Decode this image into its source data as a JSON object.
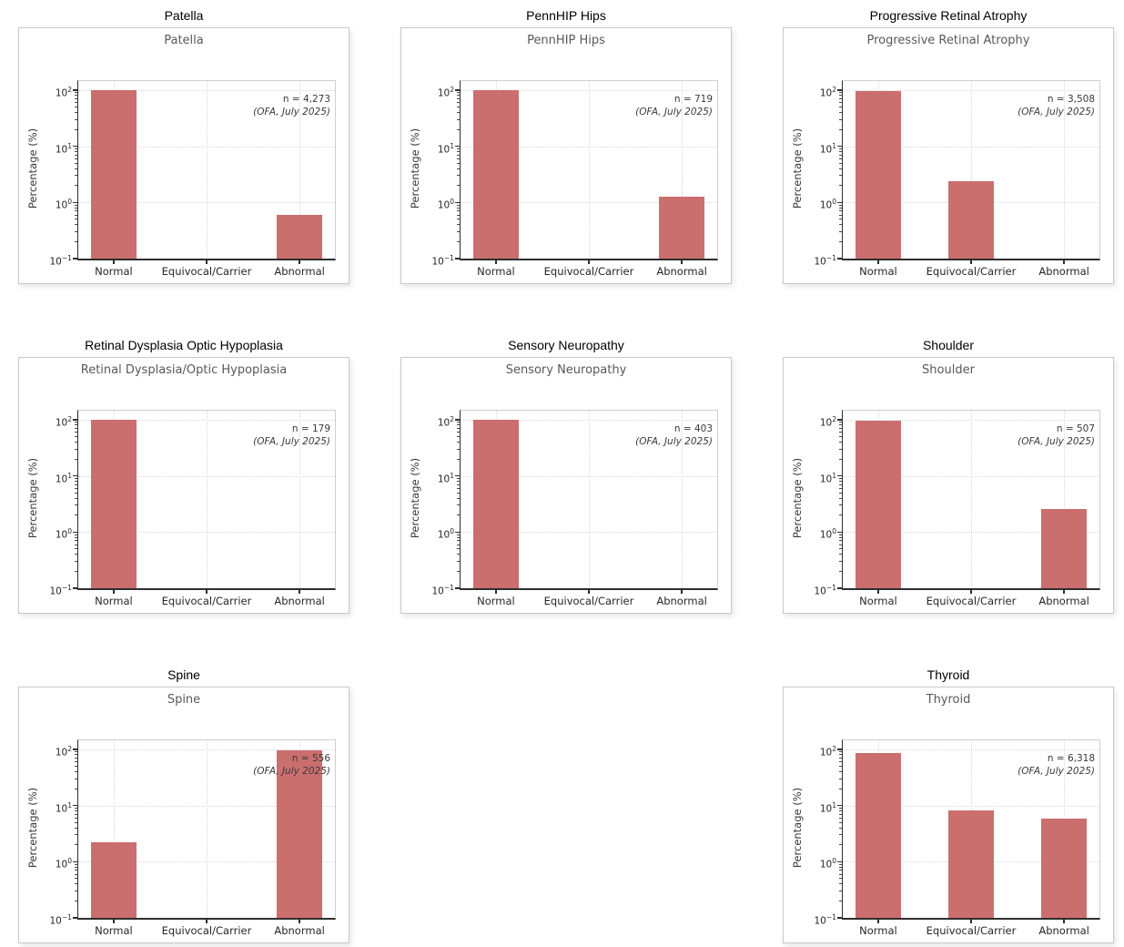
{
  "page": {
    "background": "#ffffff"
  },
  "colors": {
    "bar_fill": "#cb6e6e",
    "inner_title": "#595959",
    "gridline": "#d8d8d8",
    "axis_dark": "#2e2e2e",
    "axis_light": "#d0d0d0",
    "tick_label": "#262626",
    "annotation": "#3a3a3a",
    "card_border": "#c9c9c9",
    "figure_title": "#000000"
  },
  "layout": {
    "rows": 3,
    "cols": 3,
    "empty_cell_index": 7,
    "legend": "none",
    "grid_on": true
  },
  "chart_data": [
    {
      "type": "bar",
      "yscale": "log",
      "figure_label": "Patella",
      "title": "Patella",
      "categories": [
        "Normal",
        "Equivocal/Carrier",
        "Abnormal"
      ],
      "values": [
        99.4,
        0,
        0.6
      ],
      "annotation": {
        "n": "n = 4,273",
        "source": "(OFA, July 2025)"
      },
      "ylabel": "Percentage (%)",
      "ylim": [
        0.1,
        145
      ],
      "ytick_exponents": [
        2,
        1,
        0,
        -1
      ]
    },
    {
      "type": "bar",
      "yscale": "log",
      "figure_label": "PennHIP Hips",
      "title": "PennHIP Hips",
      "categories": [
        "Normal",
        "Equivocal/Carrier",
        "Abnormal"
      ],
      "values": [
        98.7,
        0,
        1.25
      ],
      "annotation": {
        "n": "n = 719",
        "source": "(OFA, July 2025)"
      },
      "ylabel": "Percentage (%)",
      "ylim": [
        0.1,
        145
      ],
      "ytick_exponents": [
        2,
        1,
        0,
        -1
      ]
    },
    {
      "type": "bar",
      "yscale": "log",
      "figure_label": "Progressive Retinal Atrophy",
      "title": "Progressive Retinal Atrophy",
      "categories": [
        "Normal",
        "Equivocal/Carrier",
        "Abnormal"
      ],
      "values": [
        97.5,
        2.4,
        0
      ],
      "annotation": {
        "n": "n = 3,508",
        "source": "(OFA, July 2025)"
      },
      "ylabel": "Percentage (%)",
      "ylim": [
        0.1,
        145
      ],
      "ytick_exponents": [
        2,
        1,
        0,
        -1
      ]
    },
    {
      "type": "bar",
      "yscale": "log",
      "figure_label": "Retinal Dysplasia Optic Hypoplasia",
      "title": "Retinal Dysplasia/Optic Hypoplasia",
      "categories": [
        "Normal",
        "Equivocal/Carrier",
        "Abnormal"
      ],
      "values": [
        100,
        0,
        0
      ],
      "annotation": {
        "n": "n = 179",
        "source": "(OFA, July 2025)"
      },
      "ylabel": "Percentage (%)",
      "ylim": [
        0.1,
        145
      ],
      "ytick_exponents": [
        2,
        1,
        0,
        -1
      ]
    },
    {
      "type": "bar",
      "yscale": "log",
      "figure_label": "Sensory Neuropathy",
      "title": "Sensory Neuropathy",
      "categories": [
        "Normal",
        "Equivocal/Carrier",
        "Abnormal"
      ],
      "values": [
        100,
        0,
        0
      ],
      "annotation": {
        "n": "n = 403",
        "source": "(OFA, July 2025)"
      },
      "ylabel": "Percentage (%)",
      "ylim": [
        0.1,
        145
      ],
      "ytick_exponents": [
        2,
        1,
        0,
        -1
      ]
    },
    {
      "type": "bar",
      "yscale": "log",
      "figure_label": "Shoulder",
      "title": "Shoulder",
      "categories": [
        "Normal",
        "Equivocal/Carrier",
        "Abnormal"
      ],
      "values": [
        97.4,
        0,
        2.6
      ],
      "annotation": {
        "n": "n = 507",
        "source": "(OFA, July 2025)"
      },
      "ylabel": "Percentage (%)",
      "ylim": [
        0.1,
        145
      ],
      "ytick_exponents": [
        2,
        1,
        0,
        -1
      ]
    },
    {
      "type": "bar",
      "yscale": "log",
      "figure_label": "Spine",
      "title": "Spine",
      "categories": [
        "Normal",
        "Equivocal/Carrier",
        "Abnormal"
      ],
      "values": [
        2.2,
        0,
        97.8
      ],
      "annotation": {
        "n": "n = 556",
        "source": "(OFA, July 2025)"
      },
      "ylabel": "Percentage (%)",
      "ylim": [
        0.1,
        145
      ],
      "ytick_exponents": [
        2,
        1,
        0,
        -1
      ]
    },
    {
      "type": "bar",
      "yscale": "log",
      "figure_label": "Thyroid",
      "title": "Thyroid",
      "categories": [
        "Normal",
        "Equivocal/Carrier",
        "Abnormal"
      ],
      "values": [
        86.1,
        8.1,
        5.8
      ],
      "annotation": {
        "n": "n = 6,318",
        "source": "(OFA, July 2025)"
      },
      "ylabel": "Percentage (%)",
      "ylim": [
        0.1,
        145
      ],
      "ytick_exponents": [
        2,
        1,
        0,
        -1
      ]
    }
  ]
}
